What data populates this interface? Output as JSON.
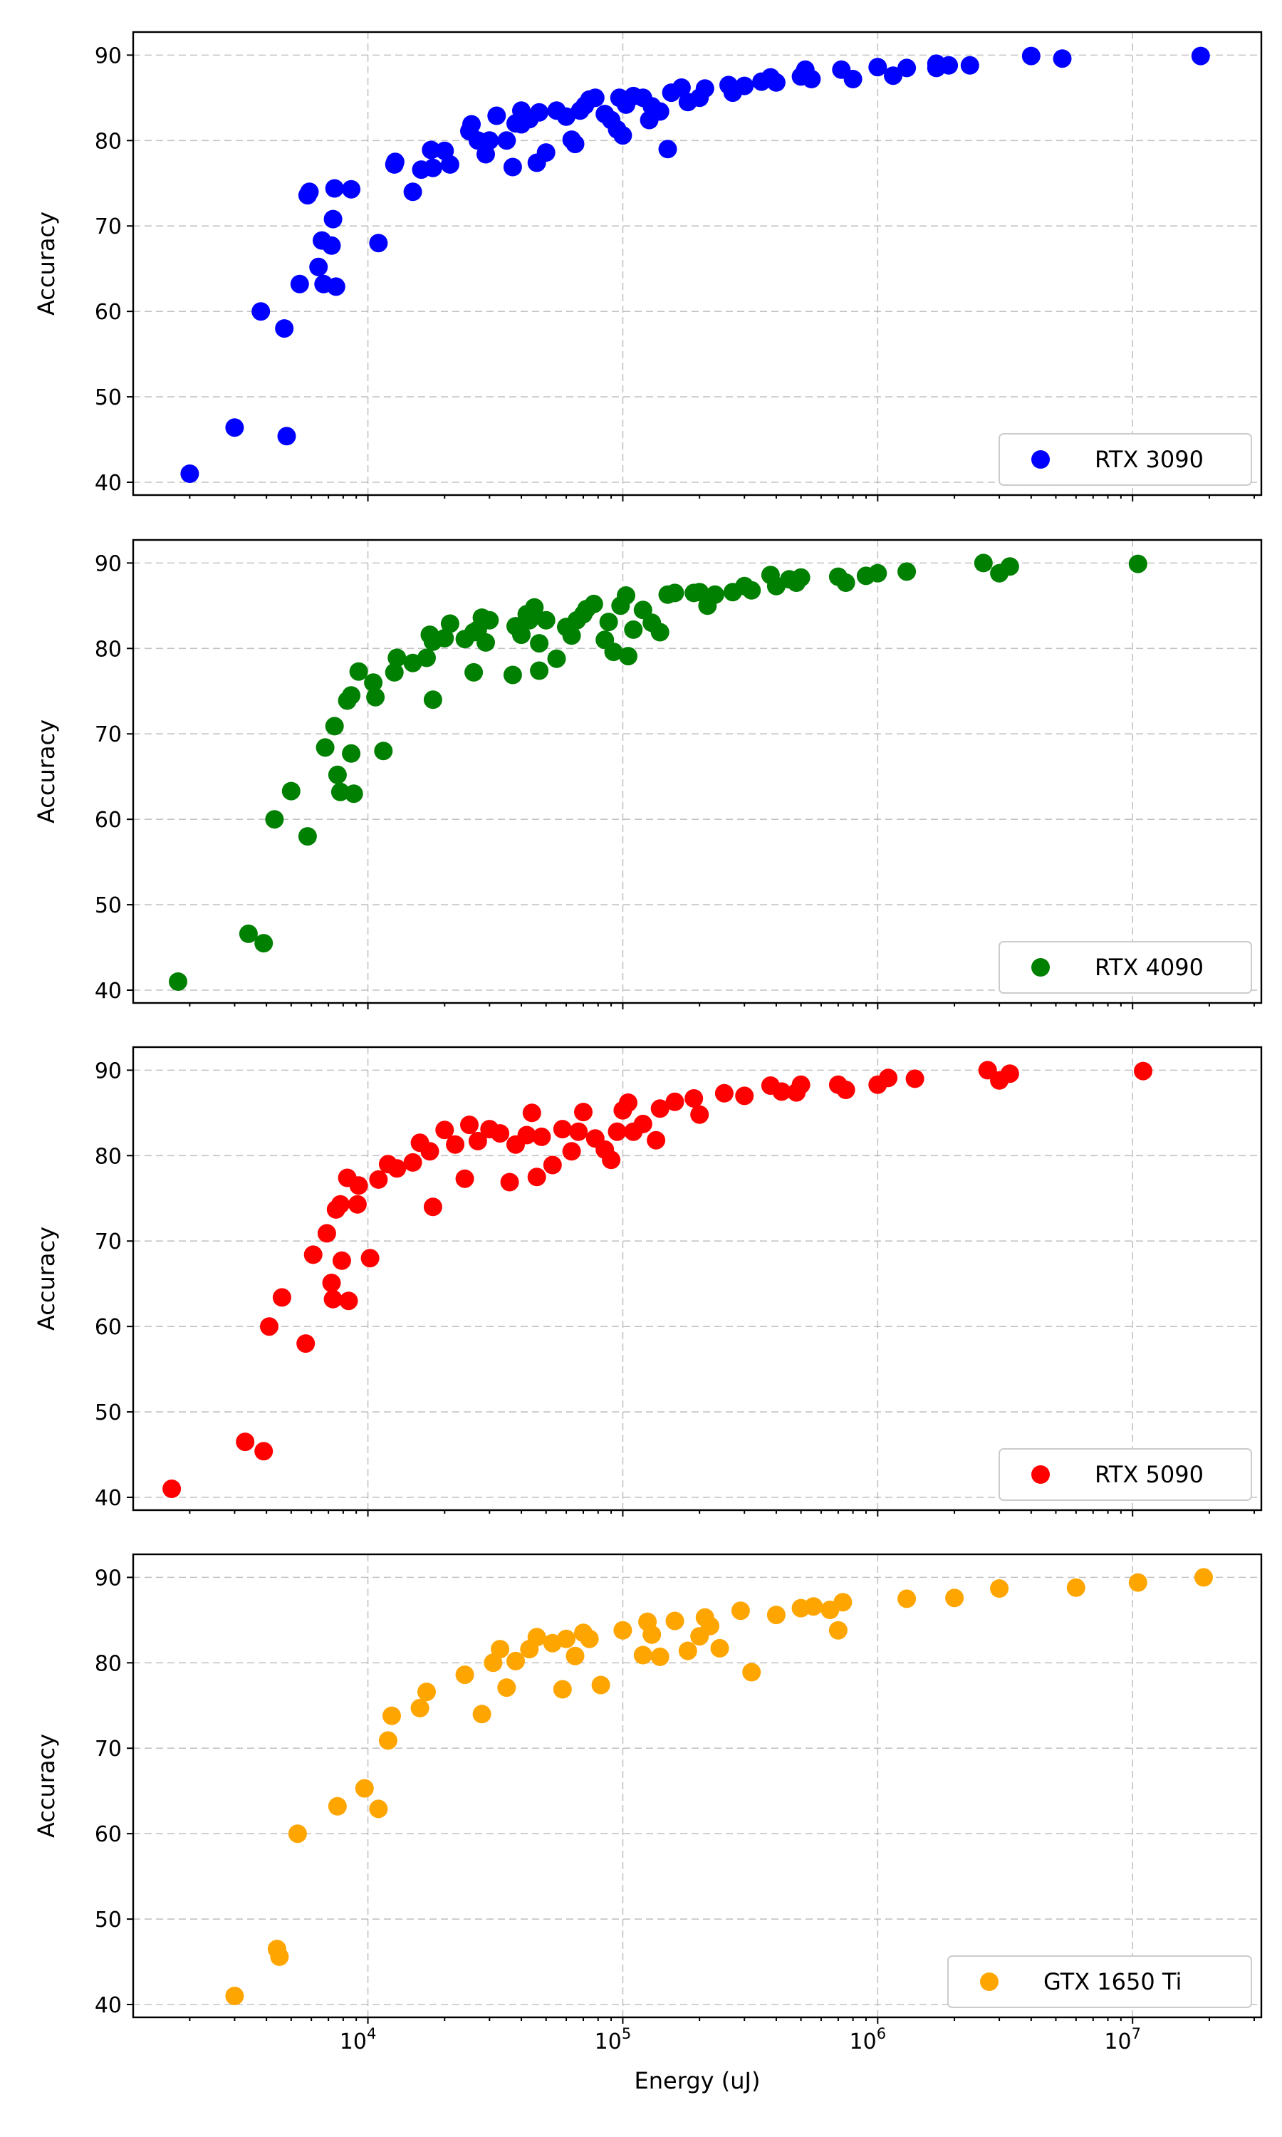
{
  "chart_data": [
    {
      "type": "scatter",
      "series": [
        {
          "name": "RTX 3090",
          "color": "#0000ff"
        }
      ],
      "points": [
        [
          2000,
          41
        ],
        [
          3000,
          46.4
        ],
        [
          3800,
          60
        ],
        [
          4700,
          58
        ],
        [
          4800,
          45.4
        ],
        [
          5400,
          63.2
        ],
        [
          5800,
          73.6
        ],
        [
          5900,
          74
        ],
        [
          6400,
          65.2
        ],
        [
          6600,
          68.3
        ],
        [
          6700,
          63.2
        ],
        [
          7200,
          67.7
        ],
        [
          7300,
          70.8
        ],
        [
          7400,
          74.4
        ],
        [
          7500,
          62.9
        ],
        [
          8600,
          74.3
        ],
        [
          11000,
          68
        ],
        [
          12700,
          77.2
        ],
        [
          12800,
          77.5
        ],
        [
          15000,
          74
        ],
        [
          16200,
          76.6
        ],
        [
          17700,
          78.9
        ],
        [
          18000,
          76.8
        ],
        [
          20000,
          78.8
        ],
        [
          21000,
          77.2
        ],
        [
          25000,
          81.1
        ],
        [
          25500,
          81.9
        ],
        [
          27000,
          80
        ],
        [
          29000,
          78.4
        ],
        [
          30000,
          80
        ],
        [
          32000,
          82.9
        ],
        [
          35000,
          80
        ],
        [
          37000,
          76.9
        ],
        [
          38000,
          82
        ],
        [
          40000,
          83.5
        ],
        [
          40000,
          81.9
        ],
        [
          43000,
          82.5
        ],
        [
          46000,
          77.4
        ],
        [
          47000,
          83.3
        ],
        [
          50000,
          78.6
        ],
        [
          55000,
          83.5
        ],
        [
          60000,
          82.8
        ],
        [
          63000,
          80.1
        ],
        [
          65000,
          79.6
        ],
        [
          68000,
          83.5
        ],
        [
          71000,
          84.1
        ],
        [
          74000,
          84.8
        ],
        [
          78000,
          85
        ],
        [
          85000,
          83.1
        ],
        [
          90000,
          82.4
        ],
        [
          95000,
          81.3
        ],
        [
          97000,
          85
        ],
        [
          100000,
          80.6
        ],
        [
          103000,
          84.2
        ],
        [
          110000,
          85.2
        ],
        [
          120000,
          85
        ],
        [
          127000,
          82.4
        ],
        [
          130000,
          84
        ],
        [
          140000,
          83.4
        ],
        [
          150000,
          79
        ],
        [
          155000,
          85.6
        ],
        [
          170000,
          86.2
        ],
        [
          180000,
          84.5
        ],
        [
          200000,
          85
        ],
        [
          210000,
          86.1
        ],
        [
          260000,
          86.5
        ],
        [
          270000,
          85.6
        ],
        [
          300000,
          86.4
        ],
        [
          350000,
          86.9
        ],
        [
          380000,
          87.4
        ],
        [
          400000,
          86.8
        ],
        [
          500000,
          87.5
        ],
        [
          520000,
          88.3
        ],
        [
          550000,
          87.2
        ],
        [
          720000,
          88.3
        ],
        [
          800000,
          87.2
        ],
        [
          1000000,
          88.6
        ],
        [
          1150000,
          87.6
        ],
        [
          1300000,
          88.5
        ],
        [
          1700000,
          88.5
        ],
        [
          1700000,
          89
        ],
        [
          1900000,
          88.8
        ],
        [
          2300000,
          88.8
        ],
        [
          4000000,
          89.9
        ],
        [
          5300000,
          89.6
        ],
        [
          18500000,
          89.9
        ]
      ],
      "x_scale": "log",
      "xlim": [
        1200,
        32000000
      ],
      "ylim": [
        38.5,
        92.7
      ],
      "y_ticks": [
        40,
        50,
        60,
        70,
        80,
        90
      ],
      "ylabel": "Accuracy",
      "legend": "RTX 3090",
      "legend_position": "lower-right",
      "grid": true
    },
    {
      "type": "scatter",
      "series": [
        {
          "name": "RTX 4090",
          "color": "#008000"
        }
      ],
      "points": [
        [
          1800,
          41
        ],
        [
          3400,
          46.6
        ],
        [
          3900,
          45.5
        ],
        [
          4300,
          60
        ],
        [
          5000,
          63.3
        ],
        [
          5800,
          58
        ],
        [
          6800,
          68.4
        ],
        [
          7400,
          70.9
        ],
        [
          7600,
          65.2
        ],
        [
          7800,
          63.2
        ],
        [
          8300,
          73.9
        ],
        [
          8600,
          74.5
        ],
        [
          8600,
          67.7
        ],
        [
          8800,
          63
        ],
        [
          9200,
          77.3
        ],
        [
          10500,
          76
        ],
        [
          10700,
          74.3
        ],
        [
          11500,
          68
        ],
        [
          12700,
          77.2
        ],
        [
          13000,
          78.9
        ],
        [
          15000,
          78.3
        ],
        [
          17000,
          78.9
        ],
        [
          17500,
          81.6
        ],
        [
          18000,
          80.8
        ],
        [
          18000,
          74
        ],
        [
          20000,
          81.2
        ],
        [
          21000,
          82.9
        ],
        [
          24000,
          81.1
        ],
        [
          26000,
          77.2
        ],
        [
          26000,
          81.9
        ],
        [
          27000,
          82.2
        ],
        [
          28000,
          83.6
        ],
        [
          29000,
          80.7
        ],
        [
          30000,
          83.3
        ],
        [
          37000,
          76.9
        ],
        [
          38000,
          82.6
        ],
        [
          40000,
          81.6
        ],
        [
          42000,
          84
        ],
        [
          43000,
          83.3
        ],
        [
          45000,
          84.8
        ],
        [
          47000,
          77.4
        ],
        [
          47000,
          80.6
        ],
        [
          50000,
          83.3
        ],
        [
          55000,
          78.8
        ],
        [
          60000,
          82.5
        ],
        [
          63000,
          81.5
        ],
        [
          66000,
          83.3
        ],
        [
          70000,
          84
        ],
        [
          72000,
          84.6
        ],
        [
          77000,
          85.2
        ],
        [
          85000,
          81
        ],
        [
          88000,
          83.1
        ],
        [
          92000,
          79.6
        ],
        [
          98000,
          85
        ],
        [
          103000,
          86.2
        ],
        [
          105000,
          79.1
        ],
        [
          110000,
          82.2
        ],
        [
          120000,
          84.5
        ],
        [
          130000,
          83
        ],
        [
          140000,
          81.9
        ],
        [
          150000,
          86.3
        ],
        [
          160000,
          86.5
        ],
        [
          190000,
          86.5
        ],
        [
          200000,
          86.6
        ],
        [
          215000,
          85
        ],
        [
          230000,
          86.3
        ],
        [
          270000,
          86.6
        ],
        [
          300000,
          87.3
        ],
        [
          320000,
          86.8
        ],
        [
          380000,
          88.6
        ],
        [
          400000,
          87.3
        ],
        [
          450000,
          88.1
        ],
        [
          480000,
          87.7
        ],
        [
          500000,
          88.3
        ],
        [
          700000,
          88.4
        ],
        [
          750000,
          87.7
        ],
        [
          900000,
          88.5
        ],
        [
          1000000,
          88.8
        ],
        [
          1300000,
          89
        ],
        [
          2600000,
          90
        ],
        [
          3000000,
          88.8
        ],
        [
          3300000,
          89.6
        ],
        [
          10500000,
          89.9
        ]
      ],
      "x_scale": "log",
      "xlim": [
        1200,
        32000000
      ],
      "ylim": [
        38.5,
        92.7
      ],
      "y_ticks": [
        40,
        50,
        60,
        70,
        80,
        90
      ],
      "ylabel": "Accuracy",
      "legend": "RTX 4090",
      "legend_position": "lower-right",
      "grid": true
    },
    {
      "type": "scatter",
      "series": [
        {
          "name": "RTX 5090",
          "color": "#ff0000"
        }
      ],
      "points": [
        [
          1700,
          41
        ],
        [
          3300,
          46.5
        ],
        [
          3900,
          45.4
        ],
        [
          4100,
          60
        ],
        [
          4600,
          63.4
        ],
        [
          5700,
          58
        ],
        [
          6100,
          68.4
        ],
        [
          6900,
          70.9
        ],
        [
          7200,
          65.1
        ],
        [
          7300,
          63.2
        ],
        [
          7500,
          73.7
        ],
        [
          7800,
          74.3
        ],
        [
          7900,
          67.7
        ],
        [
          8300,
          77.4
        ],
        [
          8400,
          63
        ],
        [
          9100,
          74.3
        ],
        [
          9200,
          76.5
        ],
        [
          10200,
          68
        ],
        [
          11000,
          77.2
        ],
        [
          12000,
          79
        ],
        [
          13000,
          78.5
        ],
        [
          15000,
          79.2
        ],
        [
          16000,
          81.5
        ],
        [
          17500,
          80.5
        ],
        [
          18000,
          74
        ],
        [
          20000,
          83
        ],
        [
          22000,
          81.3
        ],
        [
          24000,
          77.3
        ],
        [
          25000,
          83.6
        ],
        [
          27000,
          81.7
        ],
        [
          30000,
          83.1
        ],
        [
          33000,
          82.6
        ],
        [
          36000,
          76.9
        ],
        [
          38000,
          81.3
        ],
        [
          42000,
          82.4
        ],
        [
          44000,
          85
        ],
        [
          46000,
          77.5
        ],
        [
          48000,
          82.2
        ],
        [
          53000,
          78.9
        ],
        [
          58000,
          83.1
        ],
        [
          63000,
          80.5
        ],
        [
          67000,
          82.8
        ],
        [
          70000,
          85.1
        ],
        [
          78000,
          82
        ],
        [
          85000,
          80.7
        ],
        [
          90000,
          79.5
        ],
        [
          95000,
          82.8
        ],
        [
          100000,
          85.3
        ],
        [
          105000,
          86.2
        ],
        [
          110000,
          82.8
        ],
        [
          120000,
          83.7
        ],
        [
          135000,
          81.8
        ],
        [
          140000,
          85.5
        ],
        [
          160000,
          86.3
        ],
        [
          190000,
          86.7
        ],
        [
          200000,
          84.8
        ],
        [
          250000,
          87.3
        ],
        [
          300000,
          87
        ],
        [
          380000,
          88.2
        ],
        [
          420000,
          87.5
        ],
        [
          480000,
          87.4
        ],
        [
          500000,
          88.3
        ],
        [
          700000,
          88.3
        ],
        [
          750000,
          87.7
        ],
        [
          1000000,
          88.3
        ],
        [
          1100000,
          89.1
        ],
        [
          1400000,
          89
        ],
        [
          2700000,
          90
        ],
        [
          3000000,
          88.8
        ],
        [
          3300000,
          89.6
        ],
        [
          11000000,
          89.9
        ]
      ],
      "x_scale": "log",
      "xlim": [
        1200,
        32000000
      ],
      "ylim": [
        38.5,
        92.7
      ],
      "y_ticks": [
        40,
        50,
        60,
        70,
        80,
        90
      ],
      "ylabel": "Accuracy",
      "legend": "RTX 5090",
      "legend_position": "lower-right",
      "grid": true
    },
    {
      "type": "scatter",
      "series": [
        {
          "name": "GTX 1650 Ti",
          "color": "#ffa500"
        }
      ],
      "points": [
        [
          3000,
          41
        ],
        [
          4400,
          46.5
        ],
        [
          4500,
          45.6
        ],
        [
          5300,
          60
        ],
        [
          7600,
          63.2
        ],
        [
          9700,
          65.3
        ],
        [
          11000,
          62.9
        ],
        [
          12000,
          70.9
        ],
        [
          12400,
          73.8
        ],
        [
          16000,
          74.7
        ],
        [
          17000,
          76.6
        ],
        [
          24000,
          78.6
        ],
        [
          28000,
          74
        ],
        [
          31000,
          80
        ],
        [
          33000,
          81.6
        ],
        [
          35000,
          77.1
        ],
        [
          38000,
          80.2
        ],
        [
          43000,
          81.6
        ],
        [
          46000,
          83
        ],
        [
          53000,
          82.3
        ],
        [
          58000,
          76.9
        ],
        [
          60000,
          82.8
        ],
        [
          65000,
          80.8
        ],
        [
          70000,
          83.5
        ],
        [
          74000,
          82.8
        ],
        [
          82000,
          77.4
        ],
        [
          100000,
          83.8
        ],
        [
          120000,
          80.9
        ],
        [
          125000,
          84.8
        ],
        [
          130000,
          83.3
        ],
        [
          140000,
          80.7
        ],
        [
          160000,
          84.9
        ],
        [
          180000,
          81.4
        ],
        [
          200000,
          83.1
        ],
        [
          210000,
          85.3
        ],
        [
          220000,
          84.3
        ],
        [
          240000,
          81.7
        ],
        [
          290000,
          86.1
        ],
        [
          320000,
          78.9
        ],
        [
          400000,
          85.6
        ],
        [
          500000,
          86.4
        ],
        [
          560000,
          86.6
        ],
        [
          650000,
          86.2
        ],
        [
          700000,
          83.8
        ],
        [
          730000,
          87.1
        ],
        [
          1300000,
          87.5
        ],
        [
          2000000,
          87.6
        ],
        [
          3000000,
          88.7
        ],
        [
          6000000,
          88.8
        ],
        [
          10500000,
          89.4
        ],
        [
          19000000,
          90
        ]
      ],
      "x_scale": "log",
      "xlim": [
        1200,
        32000000
      ],
      "ylim": [
        38.5,
        92.7
      ],
      "y_ticks": [
        40,
        50,
        60,
        70,
        80,
        90
      ],
      "ylabel": "Accuracy",
      "xlabel": "Energy (uJ)",
      "x_ticks": [
        10000,
        100000,
        1000000,
        10000000
      ],
      "x_tick_labels": [
        {
          "base": "10",
          "exp": "4"
        },
        {
          "base": "10",
          "exp": "5"
        },
        {
          "base": "10",
          "exp": "6"
        },
        {
          "base": "10",
          "exp": "7"
        }
      ],
      "legend": "GTX 1650 Ti",
      "legend_position": "lower-right",
      "grid": true
    }
  ]
}
